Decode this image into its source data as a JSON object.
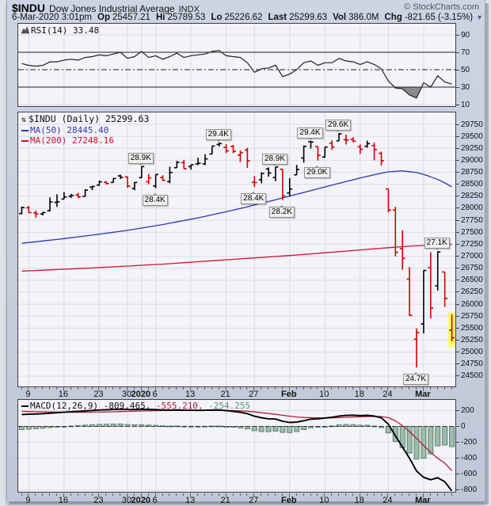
{
  "header": {
    "symbol": "$INDU",
    "name": "Dow Jones Industrial Average",
    "exchange": "INDX",
    "credit": "© StockCharts.com",
    "datetime": "6-Mar-2020 3:01pm",
    "quote_fields": [
      {
        "label": "Op",
        "value": "25457.21"
      },
      {
        "label": "Hi",
        "value": "25789.53"
      },
      {
        "label": "Lo",
        "value": "25226.62"
      },
      {
        "label": "Last",
        "value": "25299.63"
      },
      {
        "label": "Vol",
        "value": "386.0M"
      },
      {
        "label": "Chg",
        "value": "-821.65 (-3.15%)"
      }
    ],
    "chg_arrow": "▼"
  },
  "colors": {
    "up_bar": "#000000",
    "down_bar": "#d40000",
    "ma50": "#3333b4",
    "ma200": "#cc1133",
    "macd_line": "#000000",
    "signal_line": "#aa1e3c",
    "hist_fill": "#9cbcac",
    "hist_stroke": "#5e7f70",
    "rsi_line": "#222222",
    "rsi_fill": "#8c8c8c",
    "highlight": "#ffff66",
    "grid": "#dbdbe5",
    "level_line": "#222222"
  },
  "chart_data": {
    "type": "ohlc-with-indicators",
    "x_ticks": [
      {
        "label": "9",
        "bar": 1,
        "bold": false
      },
      {
        "label": "16",
        "bar": 6,
        "bold": false
      },
      {
        "label": "23",
        "bar": 11,
        "bold": false
      },
      {
        "label": "30",
        "bar": 15,
        "bold": false
      },
      {
        "label": "2020",
        "bar": 17,
        "bold": true
      },
      {
        "label": "6",
        "bar": 19,
        "bold": false
      },
      {
        "label": "13",
        "bar": 24,
        "bold": false
      },
      {
        "label": "21",
        "bar": 29,
        "bold": false
      },
      {
        "label": "27",
        "bar": 33,
        "bold": false
      },
      {
        "label": "Feb",
        "bar": 38,
        "bold": true
      },
      {
        "label": "10",
        "bar": 43,
        "bold": false
      },
      {
        "label": "18",
        "bar": 48,
        "bold": false
      },
      {
        "label": "24",
        "bar": 52,
        "bold": false
      },
      {
        "label": "Mar",
        "bar": 57,
        "bold": true
      }
    ],
    "panels": {
      "rsi": {
        "legend_label": "RSI(14)",
        "legend_value": "33.48",
        "y_labels": [
          90,
          70,
          50,
          30,
          10
        ],
        "overbought": 70,
        "oversold": 30,
        "midline": 50,
        "values": [
          57,
          55,
          54,
          55,
          59,
          59,
          61,
          62,
          61,
          64,
          65,
          67,
          66,
          68,
          70,
          63,
          65,
          71,
          64,
          66,
          62,
          65,
          69,
          64,
          66,
          67,
          68,
          71,
          72,
          66,
          65,
          64,
          58,
          47,
          51,
          52,
          55,
          42,
          45,
          50,
          58,
          60,
          55,
          58,
          58,
          63,
          60,
          59,
          56,
          59,
          56,
          51,
          37,
          29,
          28,
          21,
          17.5,
          35,
          30,
          43,
          36,
          33.48
        ]
      },
      "price": {
        "legend_symbol": "$INDU (Daily)",
        "legend_value": "25299.63",
        "ma50_label": "MA(50) 28445.40",
        "ma200_label": "MA(200) 27248.16",
        "y_labels": [
          29750,
          29500,
          29250,
          29000,
          28750,
          28500,
          28250,
          28000,
          27750,
          27500,
          27250,
          27000,
          26750,
          26500,
          26250,
          26000,
          25750,
          25500,
          25250,
          25000,
          24750,
          24500
        ],
        "bars": [
          [
            27890,
            28035,
            27875,
            28015
          ],
          [
            28010,
            28048,
            27902,
            27910
          ],
          [
            27905,
            27949,
            27804,
            27882
          ],
          [
            27880,
            27926,
            27850,
            27911
          ],
          [
            27950,
            28225,
            27935,
            28132
          ],
          [
            28123,
            28291,
            28028,
            28135
          ],
          [
            28191,
            28338,
            28191,
            28236
          ],
          [
            28250,
            28299,
            28214,
            28267
          ],
          [
            28278,
            28323,
            28211,
            28239
          ],
          [
            28247,
            28396,
            28247,
            28377
          ],
          [
            28440,
            28468,
            28377,
            28455
          ],
          [
            28482,
            28577,
            28470,
            28551
          ],
          [
            28541,
            28568,
            28498,
            28515
          ],
          [
            28539,
            28624,
            28535,
            28621
          ],
          [
            28675,
            28701,
            28608,
            28645
          ],
          [
            28654,
            28664,
            28428,
            28462
          ],
          [
            28414,
            28547,
            28376,
            28538
          ],
          [
            28639,
            28873,
            28627,
            28869
          ],
          [
            28554,
            28716,
            28500,
            28635
          ],
          [
            28465,
            28708,
            28418,
            28704
          ],
          [
            28640,
            28685,
            28566,
            28584
          ],
          [
            28556,
            28866,
            28523,
            28745
          ],
          [
            28845,
            28988,
            28844,
            28957
          ],
          [
            28953,
            29009,
            28820,
            28824
          ],
          [
            28869,
            28910,
            28805,
            28907
          ],
          [
            28926,
            29054,
            28898,
            28939
          ],
          [
            28925,
            29127,
            28897,
            29030
          ],
          [
            29131,
            29300,
            29131,
            29297
          ],
          [
            29330,
            29374,
            29287,
            29348
          ],
          [
            29269,
            29338,
            29151,
            29196
          ],
          [
            29288,
            29320,
            29149,
            29186
          ],
          [
            29109,
            29206,
            28967,
            29160
          ],
          [
            29214,
            29262,
            28843,
            28990
          ],
          [
            28542,
            28671,
            28440,
            28536
          ],
          [
            28594,
            28750,
            28523,
            28723
          ],
          [
            28820,
            28852,
            28658,
            28734
          ],
          [
            28640,
            28862,
            28565,
            28859
          ],
          [
            28813,
            28813,
            28169,
            28256
          ],
          [
            28320,
            28630,
            28245,
            28400
          ],
          [
            28697,
            28904,
            28697,
            28808
          ],
          [
            29049,
            29308,
            28950,
            29291
          ],
          [
            29388,
            29408,
            29246,
            29380
          ],
          [
            29287,
            29287,
            28996,
            29103
          ],
          [
            29068,
            29278,
            29057,
            29277
          ],
          [
            29353,
            29415,
            29217,
            29276
          ],
          [
            29406,
            29568,
            29406,
            29551
          ],
          [
            29430,
            29535,
            29331,
            29423
          ],
          [
            29440,
            29481,
            29376,
            29398
          ],
          [
            29282,
            29330,
            29133,
            29232
          ],
          [
            29292,
            29409,
            29263,
            29348
          ],
          [
            29306,
            29368,
            29002,
            29220
          ],
          [
            29146,
            29181,
            28892,
            28992
          ],
          [
            28403,
            28403,
            27912,
            27961
          ],
          [
            27963,
            28030,
            26998,
            27081
          ],
          [
            27159,
            27542,
            26718,
            26958
          ],
          [
            26526,
            26775,
            25752,
            25767
          ],
          [
            25270,
            25494,
            24681,
            25409
          ],
          [
            25590,
            26706,
            25391,
            26703
          ],
          [
            26762,
            27084,
            25706,
            25917
          ],
          [
            26383,
            27102,
            26286,
            27090
          ],
          [
            26671,
            26671,
            25943,
            26121
          ],
          [
            25457,
            25789,
            25226,
            25299
          ]
        ],
        "ma50_keypoints": [
          [
            0,
            27270
          ],
          [
            5,
            27350
          ],
          [
            10,
            27440
          ],
          [
            15,
            27540
          ],
          [
            20,
            27660
          ],
          [
            25,
            27800
          ],
          [
            30,
            27960
          ],
          [
            35,
            28140
          ],
          [
            40,
            28330
          ],
          [
            45,
            28520
          ],
          [
            48,
            28630
          ],
          [
            50,
            28700
          ],
          [
            52,
            28760
          ],
          [
            54,
            28780
          ],
          [
            56,
            28745
          ],
          [
            57,
            28705
          ],
          [
            58,
            28655
          ],
          [
            59,
            28600
          ],
          [
            60,
            28530
          ],
          [
            61,
            28445
          ]
        ],
        "ma200_keypoints": [
          [
            0,
            26690
          ],
          [
            10,
            26755
          ],
          [
            20,
            26835
          ],
          [
            30,
            26935
          ],
          [
            38,
            27015
          ],
          [
            45,
            27095
          ],
          [
            50,
            27155
          ],
          [
            53,
            27190
          ],
          [
            56,
            27218
          ],
          [
            59,
            27238
          ],
          [
            61,
            27248
          ]
        ],
        "annotations": [
          {
            "text": "28.9K",
            "bar": 17,
            "side": "above"
          },
          {
            "text": "28.4K",
            "bar": 19,
            "side": "below"
          },
          {
            "text": "29.4K",
            "bar": 28,
            "side": "above"
          },
          {
            "text": "28.4K",
            "bar": 33,
            "side": "below"
          },
          {
            "text": "28.9K",
            "bar": 36,
            "side": "above"
          },
          {
            "text": "28.2K",
            "bar": 37,
            "side": "below"
          },
          {
            "text": "29.4K",
            "bar": 41,
            "side": "above"
          },
          {
            "text": "29.0K",
            "bar": 42,
            "side": "below"
          },
          {
            "text": "29.6K",
            "bar": 45,
            "side": "above"
          },
          {
            "text": "24.7K",
            "bar": 56,
            "side": "below"
          },
          {
            "text": "27.1K",
            "bar": 59,
            "side": "above"
          }
        ],
        "highlight_last_bar": true
      },
      "macd": {
        "legend_label": "MACD(12,26,9)",
        "macd_value": "-809.465,",
        "signal_value": "-555.210,",
        "hist_value": "-254.255",
        "y_labels": [
          200,
          0,
          -200,
          -400,
          -600,
          -800
        ],
        "macd": [
          150,
          153,
          156,
          160,
          166,
          172,
          178,
          184,
          189,
          195,
          201,
          206,
          210,
          214,
          217,
          213,
          212,
          216,
          213,
          211,
          207,
          205,
          207,
          204,
          203,
          202,
          203,
          206,
          207,
          198,
          188,
          177,
          160,
          128,
          108,
          96,
          93,
          65,
          50,
          54,
          72,
          92,
          96,
          105,
          114,
          130,
          138,
          141,
          136,
          139,
          130,
          108,
          28,
          -118,
          -258,
          -400,
          -560,
          -640,
          -670,
          -645,
          -695,
          -809.47
        ],
        "signal": [
          190,
          187,
          185,
          183,
          181,
          180,
          179,
          178,
          178,
          178,
          179,
          180,
          182,
          184,
          187,
          189,
          191,
          194,
          196,
          198,
          199,
          200,
          201,
          201,
          201,
          201,
          201,
          201,
          202,
          201,
          199,
          196,
          191,
          182,
          172,
          162,
          152,
          140,
          128,
          118,
          112,
          109,
          107,
          106,
          107,
          110,
          114,
          118,
          121,
          124,
          125,
          123,
          110,
          70,
          10,
          -65,
          -150,
          -240,
          -325,
          -400,
          -462,
          -555.21
        ]
      }
    }
  }
}
